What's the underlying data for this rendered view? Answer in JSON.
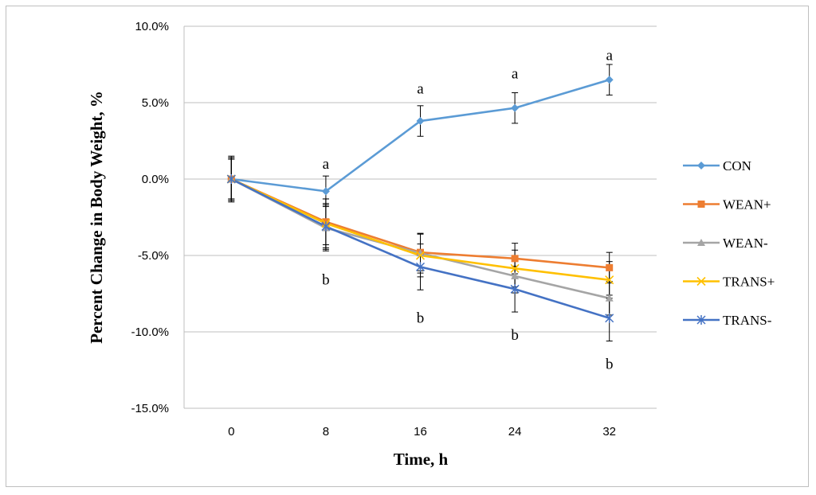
{
  "chart_data": {
    "type": "line",
    "title": "",
    "xlabel": "Time, h",
    "ylabel": "Percent Change in Body Weight, %",
    "x": [
      0,
      8,
      16,
      24,
      32
    ],
    "x_tick_labels": [
      "0",
      "8",
      "16",
      "24",
      "32"
    ],
    "ylim": [
      -15.0,
      10.0
    ],
    "y_ticks": [
      -15.0,
      -10.0,
      -5.0,
      0.0,
      5.0,
      10.0
    ],
    "y_tick_labels": [
      "-15.0%",
      "-10.0%",
      "-5.0%",
      "0.0%",
      "5.0%",
      "10.0%"
    ],
    "grid": "horizontal",
    "legend_position": "right",
    "series": [
      {
        "name": "CON",
        "color": "#5B9BD5",
        "marker": "diamond",
        "values": [
          0.0,
          -0.8,
          3.8,
          4.65,
          6.5
        ],
        "error": [
          1.5,
          1.0,
          1.0,
          1.0,
          1.0
        ]
      },
      {
        "name": "WEAN+",
        "color": "#ED7D31",
        "marker": "square",
        "values": [
          0.0,
          -2.8,
          -4.8,
          -5.2,
          -5.8
        ],
        "error": [
          1.4,
          1.5,
          1.2,
          1.0,
          1.0
        ]
      },
      {
        "name": "WEAN-",
        "color": "#A5A5A5",
        "marker": "triangle",
        "values": [
          0.0,
          -3.2,
          -4.85,
          -6.35,
          -7.8
        ],
        "error": [
          1.4,
          1.5,
          1.3,
          1.1,
          1.1
        ]
      },
      {
        "name": "TRANS+",
        "color": "#FFC000",
        "marker": "x",
        "values": [
          0.0,
          -2.9,
          -5.0,
          -5.85,
          -6.6
        ],
        "error": [
          1.3,
          1.6,
          1.4,
          1.2,
          1.2
        ]
      },
      {
        "name": "TRANS-",
        "color": "#4472C4",
        "marker": "asterisk",
        "values": [
          0.0,
          -3.1,
          -5.75,
          -7.2,
          -9.1
        ],
        "error": [
          1.3,
          1.5,
          1.5,
          1.5,
          1.5
        ]
      }
    ],
    "annotations": [
      {
        "text": "a",
        "x": 8,
        "y": 1.0
      },
      {
        "text": "a",
        "x": 16,
        "y": 5.9
      },
      {
        "text": "a",
        "x": 24,
        "y": 6.9
      },
      {
        "text": "a",
        "x": 32,
        "y": 8.1
      },
      {
        "text": "b",
        "x": 8,
        "y": -6.6
      },
      {
        "text": "b",
        "x": 16,
        "y": -9.1
      },
      {
        "text": "b",
        "x": 24,
        "y": -10.2
      },
      {
        "text": "b",
        "x": 32,
        "y": -12.1
      }
    ]
  }
}
